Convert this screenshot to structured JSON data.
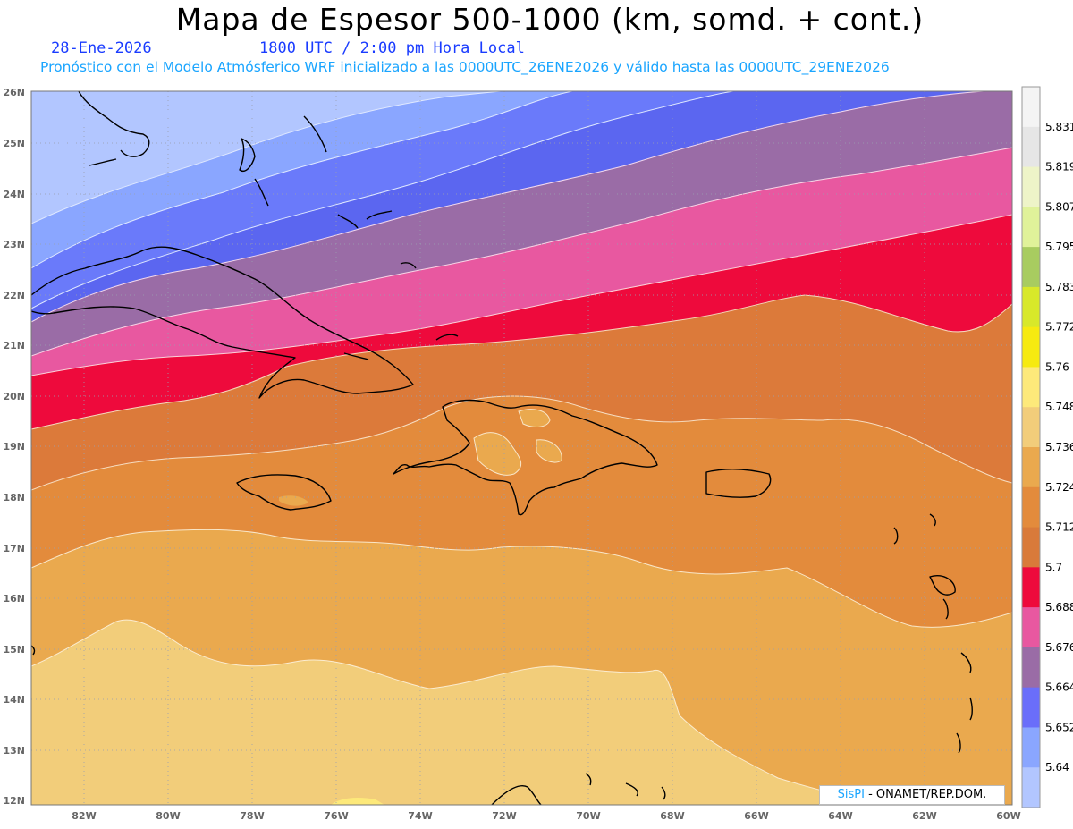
{
  "header": {
    "title": "Mapa de Espesor 500-1000 (km, somd. + cont.)",
    "date": "28-Ene-2026",
    "time": "1800 UTC / 2:00 pm Hora Local",
    "subtitle": "Pronóstico con el Modelo Atmósferico WRF inicializado a las 0000UTC_26ENE2026 y válido hasta las  0000UTC_29ENE2026"
  },
  "map": {
    "lat_labels": [
      "26N",
      "25N",
      "24N",
      "23N",
      "22N",
      "21N",
      "20N",
      "19N",
      "18N",
      "17N",
      "16N",
      "15N",
      "14N",
      "13N",
      "12N"
    ],
    "lon_labels": [
      "82W",
      "80W",
      "78W",
      "76W",
      "74W",
      "72W",
      "70W",
      "68W",
      "66W",
      "64W",
      "62W",
      "60W"
    ],
    "lat_range": [
      12,
      26
    ],
    "lon_range": [
      -83.2,
      -60
    ],
    "grid": true
  },
  "colorbar": {
    "labels": [
      "5.831",
      "5.819",
      "5.807",
      "5.795",
      "5.783",
      "5.772",
      "5.76",
      "5.748",
      "5.736",
      "5.724",
      "5.712",
      "5.7",
      "5.688",
      "5.676",
      "5.664",
      "5.652",
      "5.64"
    ],
    "colors": [
      "#e6e6e6",
      "#eef4c8",
      "#e0f29a",
      "#a8cc60",
      "#d8e82a",
      "#f6ea10",
      "#fde97a",
      "#f2cd7a",
      "#eaa94e",
      "#e38b3c",
      "#d97a3a",
      "#ee0a3c",
      "#e858a0",
      "#9a6ca6",
      "#6a6efa",
      "#8aa6ff",
      "#b2c6ff"
    ]
  },
  "credit": {
    "brand": "SisPI",
    "text": "- ONAMET/REP.DOM."
  }
}
